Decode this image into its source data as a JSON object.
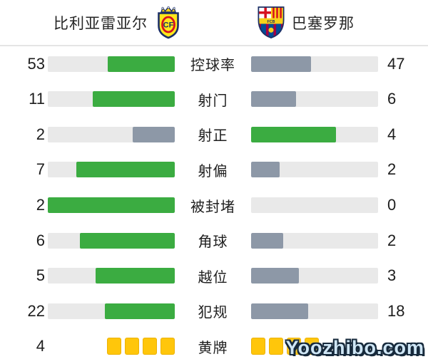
{
  "teams": {
    "home": {
      "name": "比利亚雷亚尔"
    },
    "away": {
      "name": "巴塞罗那"
    }
  },
  "palette": {
    "green": "#3BAC41",
    "gray": "#8D98A7",
    "track": "#E9E9E9",
    "card": "#FFC60B"
  },
  "rows": [
    {
      "label": "控球率",
      "home": {
        "value": "53",
        "pct": 53,
        "tone": "green"
      },
      "away": {
        "value": "47",
        "pct": 47,
        "tone": "gray"
      }
    },
    {
      "label": "射门",
      "home": {
        "value": "11",
        "pct": 64.7,
        "tone": "green"
      },
      "away": {
        "value": "6",
        "pct": 35.3,
        "tone": "gray"
      }
    },
    {
      "label": "射正",
      "home": {
        "value": "2",
        "pct": 33.3,
        "tone": "gray"
      },
      "away": {
        "value": "4",
        "pct": 66.7,
        "tone": "green"
      }
    },
    {
      "label": "射偏",
      "home": {
        "value": "7",
        "pct": 77.8,
        "tone": "green"
      },
      "away": {
        "value": "2",
        "pct": 22.2,
        "tone": "gray"
      }
    },
    {
      "label": "被封堵",
      "home": {
        "value": "2",
        "pct": 100,
        "tone": "green"
      },
      "away": {
        "value": "0",
        "pct": 0,
        "tone": "gray"
      }
    },
    {
      "label": "角球",
      "home": {
        "value": "6",
        "pct": 75,
        "tone": "green"
      },
      "away": {
        "value": "2",
        "pct": 25,
        "tone": "gray"
      }
    },
    {
      "label": "越位",
      "home": {
        "value": "5",
        "pct": 62.5,
        "tone": "green"
      },
      "away": {
        "value": "3",
        "pct": 37.5,
        "tone": "gray"
      }
    },
    {
      "label": "犯规",
      "home": {
        "value": "22",
        "pct": 55,
        "tone": "green"
      },
      "away": {
        "value": "18",
        "pct": 45,
        "tone": "gray"
      }
    },
    {
      "label": "黄牌",
      "type": "cards",
      "home": {
        "value": "4",
        "cards": 4
      },
      "away": {
        "value": "",
        "cards": 4
      }
    }
  ],
  "chart_data": {
    "type": "bar",
    "subtype": "paired-horizontal-comparison",
    "title": "比利亚雷亚尔 vs 巴塞罗那",
    "categories": [
      "控球率",
      "射门",
      "射正",
      "射偏",
      "被封堵",
      "角球",
      "越位",
      "犯规",
      "黄牌"
    ],
    "series": [
      {
        "name": "比利亚雷亚尔",
        "values": [
          53,
          11,
          2,
          7,
          2,
          6,
          5,
          22,
          4
        ]
      },
      {
        "name": "巴塞罗那",
        "values": [
          47,
          6,
          4,
          2,
          0,
          2,
          3,
          18,
          4
        ]
      }
    ],
    "notes": "黄牌 row rendered as yellow card icons (4 per team); leading value bar is green, trailing bar is gray-blue; bars grow outward from the center labels"
  },
  "watermark": {
    "text": "Yoozhibo.com"
  }
}
